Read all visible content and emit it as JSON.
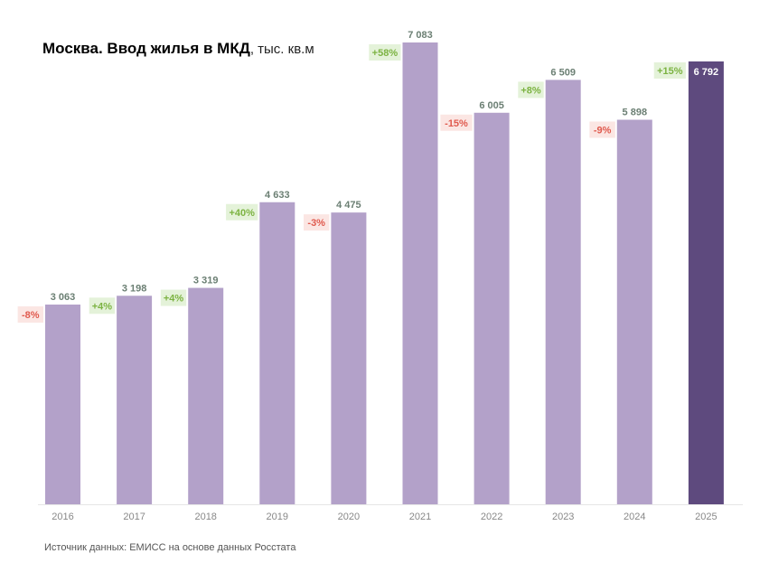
{
  "title": {
    "main": "Москва. Ввод жилья в МКД",
    "unit": ", тыс. кв.м"
  },
  "source": "Источник данных: ЕМИСС на основе данных Росстата",
  "colors": {
    "bar": "#b3a1c9",
    "bar_highlight": "#5e4a7e",
    "value_label": "#6b7f73",
    "positive_text": "#7cb342",
    "positive_bg": "#e4f2d9",
    "negative_text": "#e05a4e",
    "negative_bg": "#fbe6e3",
    "axis": "#e6e6e6"
  },
  "chart_data": {
    "type": "bar",
    "title": "Москва. Ввод жилья в МКД, тыс. кв.м",
    "xlabel": "",
    "ylabel": "",
    "ylim": [
      0,
      7083
    ],
    "categories": [
      "2016",
      "2017",
      "2018",
      "2019",
      "2020",
      "2021",
      "2022",
      "2023",
      "2024",
      "2025"
    ],
    "values": [
      3063,
      3198,
      3319,
      4633,
      4475,
      7083,
      6005,
      6509,
      5898,
      6792
    ],
    "value_labels": [
      "3 063",
      "3 198",
      "3 319",
      "4 633",
      "4 475",
      "7 083",
      "6 005",
      "6 509",
      "5 898",
      "6 792"
    ],
    "changes": [
      "-8%",
      "+4%",
      "+4%",
      "+40%",
      "-3%",
      "+58%",
      "-15%",
      "+8%",
      "-9%",
      "+15%"
    ],
    "highlight_index": 9
  }
}
